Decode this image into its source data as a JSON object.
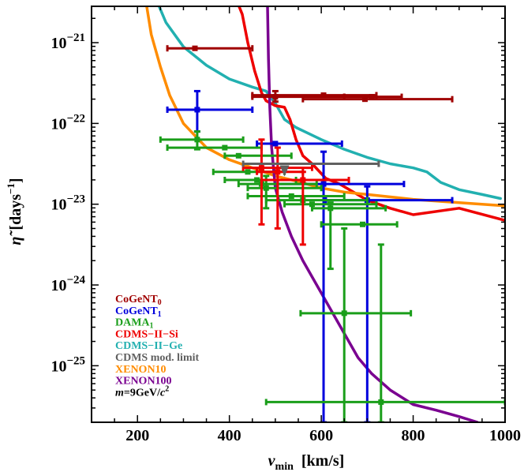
{
  "chart_data": {
    "type": "scatter",
    "title": "",
    "xlabel": {
      "main": "v",
      "sub": "min",
      "unit": "[km/s]"
    },
    "ylabel": {
      "main": "η̃",
      "unit_open": "[days",
      "unit_exp": "−1",
      "unit_close": "]"
    },
    "xlim": [
      100,
      1000
    ],
    "ylim_log10": [
      -25.7,
      -20.55
    ],
    "x_ticks": [
      200,
      400,
      600,
      800,
      1000
    ],
    "x_tick_labels": [
      "200",
      "400",
      "600",
      "800",
      "1000"
    ],
    "y_ticks": [
      -21,
      -22,
      -23,
      -24,
      -25
    ],
    "y_tick_base": "10",
    "y_tick_exponents": [
      "−21",
      "−22",
      "−23",
      "−24",
      "−25"
    ],
    "grid": false,
    "legend_position": "bottom-left",
    "legend": [
      {
        "key": "cogent0",
        "text": "CoGeNT",
        "sub": "0",
        "color": "#a00000"
      },
      {
        "key": "cogent1",
        "text": "CoGeNT",
        "sub": "1",
        "color": "#0000dd"
      },
      {
        "key": "dama",
        "text": "DAMA",
        "sub": "1",
        "color": "#1a9e1a"
      },
      {
        "key": "cdmssi",
        "text": "CDMS−II−Si",
        "sub": "",
        "color": "#ee0000"
      },
      {
        "key": "cdmsge",
        "text": "CDMS−II−Ge",
        "sub": "",
        "color": "#22b0b0"
      },
      {
        "key": "cdmsmod",
        "text": "CDMS mod. limit",
        "sub": "",
        "color": "#606060"
      },
      {
        "key": "xenon10",
        "text": "XENON10",
        "sub": "",
        "color": "#ff8c00"
      },
      {
        "key": "xenon100",
        "text": "XENON100",
        "sub": "",
        "color": "#7a0090"
      }
    ],
    "mass_label": {
      "prefix": "m",
      "rest": "=9GeV/",
      "unit": "c",
      "exp": "2"
    },
    "curves": [
      {
        "name": "CDMS−II−Ge",
        "color": "#22b0b0",
        "points": [
          [
            247,
            -20.55
          ],
          [
            262,
            -20.75
          ],
          [
            300,
            -21.05
          ],
          [
            350,
            -21.28
          ],
          [
            400,
            -21.45
          ],
          [
            450,
            -21.55
          ],
          [
            480,
            -21.6
          ],
          [
            500,
            -21.75
          ],
          [
            520,
            -21.95
          ],
          [
            545,
            -22.05
          ],
          [
            600,
            -22.2
          ],
          [
            650,
            -22.32
          ],
          [
            700,
            -22.42
          ],
          [
            750,
            -22.5
          ],
          [
            800,
            -22.55
          ],
          [
            830,
            -22.6
          ],
          [
            860,
            -22.73
          ],
          [
            900,
            -22.82
          ],
          [
            950,
            -22.88
          ],
          [
            990,
            -22.93
          ]
        ]
      },
      {
        "name": "CDMS−II−Si",
        "color": "#ee0000",
        "points": [
          [
            421,
            -20.55
          ],
          [
            428,
            -20.65
          ],
          [
            440,
            -21.0
          ],
          [
            455,
            -21.35
          ],
          [
            470,
            -21.62
          ],
          [
            480,
            -21.72
          ],
          [
            500,
            -21.78
          ],
          [
            520,
            -21.8
          ],
          [
            532,
            -21.95
          ],
          [
            545,
            -22.2
          ],
          [
            560,
            -22.4
          ],
          [
            580,
            -22.5
          ],
          [
            610,
            -22.68
          ],
          [
            640,
            -22.75
          ],
          [
            670,
            -22.85
          ],
          [
            700,
            -22.95
          ],
          [
            750,
            -23.05
          ],
          [
            800,
            -23.13
          ],
          [
            900,
            -23.05
          ],
          [
            1000,
            -23.2
          ]
        ]
      },
      {
        "name": "XENON10",
        "color": "#ff8c00",
        "points": [
          [
            220,
            -20.55
          ],
          [
            230,
            -20.9
          ],
          [
            250,
            -21.3
          ],
          [
            270,
            -21.65
          ],
          [
            300,
            -22.0
          ],
          [
            350,
            -22.3
          ],
          [
            400,
            -22.45
          ],
          [
            450,
            -22.55
          ],
          [
            500,
            -22.65
          ],
          [
            550,
            -22.72
          ],
          [
            600,
            -22.8
          ],
          [
            650,
            -22.85
          ],
          [
            700,
            -22.88
          ],
          [
            800,
            -22.94
          ],
          [
            900,
            -22.98
          ],
          [
            1000,
            -23.02
          ]
        ]
      },
      {
        "name": "XENON100",
        "color": "#7a0090",
        "points": [
          [
            483,
            -20.55
          ],
          [
            485,
            -21.2
          ],
          [
            488,
            -21.8
          ],
          [
            492,
            -22.3
          ],
          [
            500,
            -22.8
          ],
          [
            515,
            -23.1
          ],
          [
            535,
            -23.4
          ],
          [
            560,
            -23.7
          ],
          [
            590,
            -24.0
          ],
          [
            620,
            -24.3
          ],
          [
            650,
            -24.6
          ],
          [
            680,
            -24.9
          ],
          [
            710,
            -25.1
          ],
          [
            750,
            -25.3
          ],
          [
            800,
            -25.48
          ],
          [
            850,
            -25.55
          ],
          [
            900,
            -25.63
          ],
          [
            940,
            -25.7
          ]
        ]
      }
    ],
    "series": [
      {
        "name": "CoGeNT0",
        "color": "#a00000",
        "points": [
          {
            "x": 325,
            "y": -21.07,
            "xl": 265,
            "xh": 450,
            "yl": -21.07,
            "yh": -21.07
          },
          {
            "x": 500,
            "y": -21.67,
            "xl": 450,
            "xh": 650,
            "yl": -21.6,
            "yh": -21.73
          },
          {
            "x": 605,
            "y": -21.65,
            "xl": 450,
            "xh": 720,
            "yl": -21.65,
            "yh": -21.65
          },
          {
            "x": 695,
            "y": -21.7,
            "xl": 560,
            "xh": 885,
            "yl": -21.7,
            "yh": -21.7
          },
          {
            "x": 710,
            "y": -21.67,
            "xl": 650,
            "xh": 775,
            "yl": -21.67,
            "yh": -21.67
          }
        ]
      },
      {
        "name": "CoGeNT1",
        "color": "#0000dd",
        "points": [
          {
            "x": 330,
            "y": -21.83,
            "xl": 265,
            "xh": 450,
            "yl": -21.6,
            "yh": -22.1
          },
          {
            "x": 500,
            "y": -22.25,
            "xl": 460,
            "xh": 645,
            "yl": -22.25,
            "yh": -22.25
          },
          {
            "x": 605,
            "y": -22.75,
            "xl": 505,
            "xh": 780,
            "yl": -22.35,
            "yh": -25.7
          },
          {
            "x": 700,
            "y": -22.95,
            "xl": 610,
            "xh": 885,
            "yl": -22.78,
            "yh": -25.7
          }
        ]
      },
      {
        "name": "DAMA1",
        "color": "#1a9e1a",
        "points": [
          {
            "x": 330,
            "y": -22.2,
            "xl": 250,
            "xh": 430,
            "yl": -22.1,
            "yh": -22.32
          },
          {
            "x": 390,
            "y": -22.3,
            "xl": 265,
            "xh": 470,
            "yl": -22.3,
            "yh": -22.3
          },
          {
            "x": 420,
            "y": -22.4,
            "xl": 390,
            "xh": 535,
            "yl": -22.4,
            "yh": -22.4
          },
          {
            "x": 440,
            "y": -22.6,
            "xl": 365,
            "xh": 520,
            "yl": -22.6,
            "yh": -22.6
          },
          {
            "x": 460,
            "y": -22.7,
            "xl": 390,
            "xh": 545,
            "yl": -22.7,
            "yh": -22.7
          },
          {
            "x": 470,
            "y": -22.75,
            "xl": 420,
            "xh": 590,
            "yl": -22.75,
            "yh": -22.75
          },
          {
            "x": 480,
            "y": -22.8,
            "xl": 440,
            "xh": 600,
            "yl": -22.65,
            "yh": -23.05
          },
          {
            "x": 535,
            "y": -22.9,
            "xl": 440,
            "xh": 650,
            "yl": -22.9,
            "yh": -22.9
          },
          {
            "x": 560,
            "y": -22.95,
            "xl": 480,
            "xh": 700,
            "yl": -22.95,
            "yh": -22.95
          },
          {
            "x": 580,
            "y": -23.0,
            "xl": 520,
            "xh": 720,
            "yl": -23.0,
            "yh": -23.0
          },
          {
            "x": 620,
            "y": -23.05,
            "xl": 580,
            "xh": 740,
            "yl": -22.98,
            "yh": -23.8
          },
          {
            "x": 690,
            "y": -23.25,
            "xl": 600,
            "xh": 765,
            "yl": -23.25,
            "yh": -23.25
          },
          {
            "x": 650,
            "y": -24.35,
            "xl": 555,
            "xh": 795,
            "yl": -23.3,
            "yh": -25.7
          },
          {
            "x": 730,
            "y": -25.45,
            "xl": 480,
            "xh": 1000,
            "yl": -23.5,
            "yh": -25.7
          }
        ]
      },
      {
        "name": "CDMS−II−Si",
        "color": "#ee0000",
        "points": [
          {
            "x": 470,
            "y": -22.55,
            "xl": 430,
            "xh": 580,
            "yl": -22.2,
            "yh": -23.25
          },
          {
            "x": 505,
            "y": -22.6,
            "xl": 460,
            "xh": 560,
            "yl": -22.3,
            "yh": -23.3
          },
          {
            "x": 560,
            "y": -22.7,
            "xl": 470,
            "xh": 660,
            "yl": -22.6,
            "yh": -23.5
          }
        ]
      },
      {
        "name": "CDMS mod. limit",
        "color": "#606060",
        "points": [
          {
            "x": 520,
            "y": -22.5,
            "xl": 430,
            "xh": 725,
            "yl": -22.5,
            "yh": -22.5
          }
        ]
      }
    ]
  }
}
